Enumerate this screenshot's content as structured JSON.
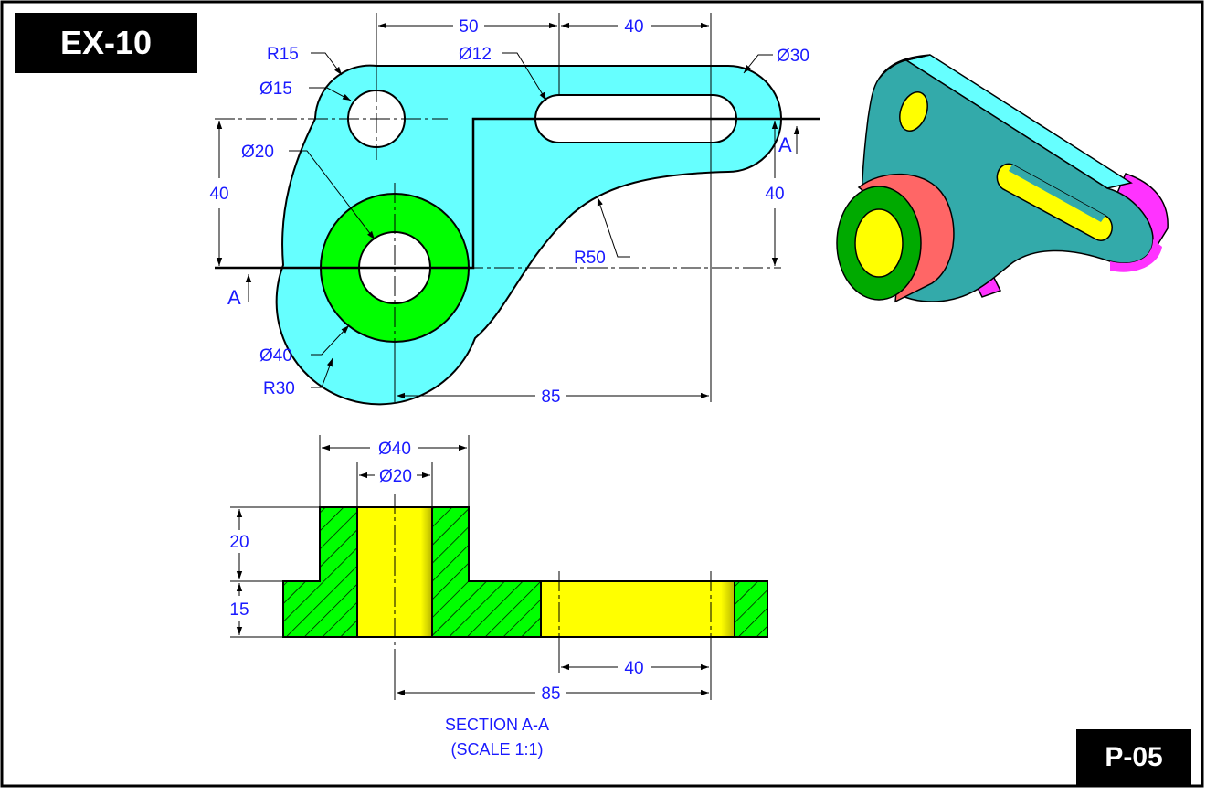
{
  "exercise_label": "EX-10",
  "page_label": "P-05",
  "colors": {
    "body": "#66ffff",
    "boss": "#00ff00",
    "hole_section": "#ffff00",
    "dimension": "#1a1aff",
    "iso_top": "#66ffff",
    "iso_front": "#33aaaa",
    "iso_end": "#ff33ff",
    "iso_boss_side": "#ff6666"
  },
  "top_view": {
    "dims": {
      "r15": "R15",
      "d15": "Ø15",
      "d20": "Ø20",
      "d12": "Ø12",
      "d30": "Ø30",
      "w50": "50",
      "w40": "40",
      "h40_left": "40",
      "h40_right": "40",
      "r50": "R50",
      "d40": "Ø40",
      "r30": "R30",
      "w85": "85"
    },
    "section_mark_left": "A",
    "section_mark_right": "A"
  },
  "section_view": {
    "dims": {
      "d40": "Ø40",
      "d20": "Ø20",
      "h20": "20",
      "h15": "15",
      "w40": "40",
      "w85": "85"
    },
    "title": "SECTION A-A",
    "scale": "(SCALE 1:1)"
  }
}
